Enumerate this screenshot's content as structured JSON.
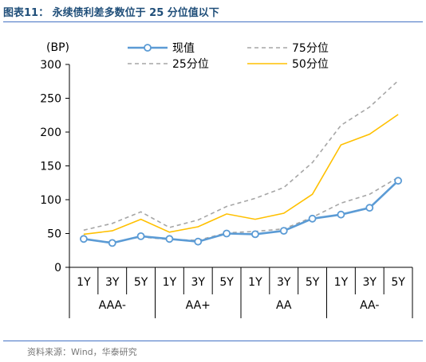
{
  "figure_title": "图表11：  永续债利差多数位于 25 分位值以下",
  "source": "资料来源：Wind，华泰研究",
  "chart_data": {
    "type": "line",
    "unit_label": "(BP)",
    "ylim": [
      0,
      300
    ],
    "yticks": [
      0,
      50,
      100,
      150,
      200,
      250,
      300
    ],
    "groups": [
      {
        "name": "AAA-",
        "terms": [
          "1Y",
          "3Y",
          "5Y"
        ]
      },
      {
        "name": "AA+",
        "terms": [
          "1Y",
          "3Y",
          "5Y"
        ]
      },
      {
        "name": "AA",
        "terms": [
          "1Y",
          "3Y",
          "5Y"
        ]
      },
      {
        "name": "AA-",
        "terms": [
          "1Y",
          "3Y",
          "5Y"
        ]
      }
    ],
    "series": [
      {
        "name": "现值",
        "color": "#5b9bd5",
        "style": "solid-marker",
        "values": [
          42,
          36,
          46,
          42,
          38,
          50,
          49,
          54,
          72,
          78,
          88,
          128
        ]
      },
      {
        "name": "25分位",
        "color": "#a6a6a6",
        "style": "dashed",
        "values": [
          41,
          37,
          45,
          41,
          40,
          51,
          53,
          57,
          74,
          95,
          108,
          133
        ]
      },
      {
        "name": "75分位",
        "color": "#a6a6a6",
        "style": "dashed",
        "values": [
          55,
          65,
          82,
          59,
          70,
          90,
          102,
          118,
          155,
          210,
          237,
          276
        ]
      },
      {
        "name": "50分位",
        "color": "#ffc000",
        "style": "solid",
        "values": [
          49,
          54,
          71,
          52,
          60,
          79,
          71,
          80,
          108,
          181,
          197,
          226
        ]
      }
    ],
    "legend": {
      "placement": "top",
      "order": [
        "现值",
        "75分位",
        "25分位",
        "50分位"
      ]
    },
    "grid": false
  }
}
